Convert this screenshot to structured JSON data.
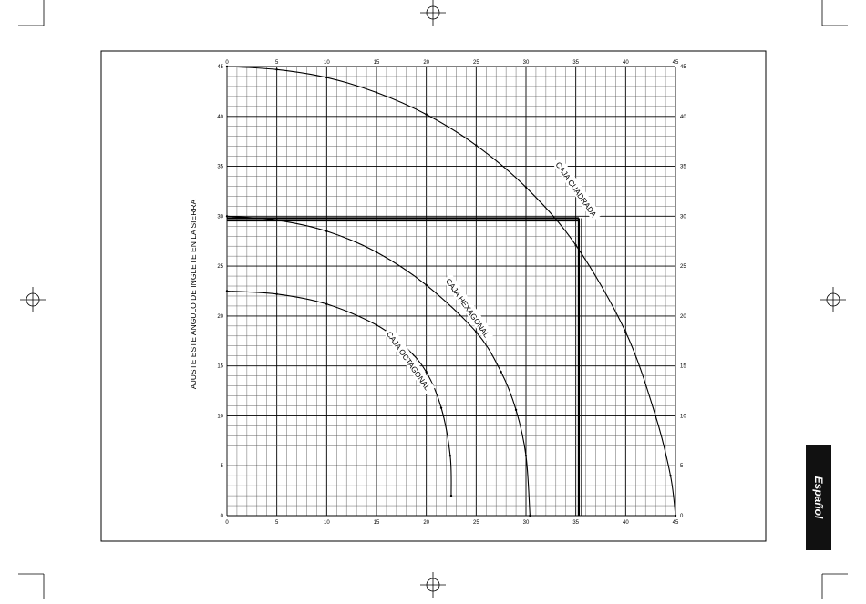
{
  "language_tab": "Español",
  "chart_data": {
    "type": "line",
    "title": "",
    "xlabel": "",
    "ylabel": "AJUSTE ESTE ANGULO DE INGLETE EN LA SIERRA",
    "xlim": [
      0,
      45
    ],
    "ylim": [
      0,
      45
    ],
    "x_ticks": [
      "0",
      "5",
      "10",
      "15",
      "20",
      "25",
      "30",
      "35",
      "40",
      "45"
    ],
    "y_ticks": [
      "0",
      "5",
      "10",
      "15",
      "20",
      "25",
      "30",
      "35",
      "40",
      "45"
    ],
    "grid": true,
    "minor_grid_step": 1,
    "series": [
      {
        "name": "CAJA CUADRADA",
        "points": [
          [
            0,
            45
          ],
          [
            5,
            44.7
          ],
          [
            10,
            43.9
          ],
          [
            15,
            42.4
          ],
          [
            20,
            40.2
          ],
          [
            25,
            37.1
          ],
          [
            30,
            32.9
          ],
          [
            35,
            27.1
          ],
          [
            40,
            18.4
          ],
          [
            43,
            10
          ],
          [
            44.5,
            4
          ],
          [
            45,
            0
          ]
        ]
      },
      {
        "name": "CAJA HEXAGONAL",
        "points": [
          [
            0,
            30
          ],
          [
            5,
            29.6
          ],
          [
            10,
            28.5
          ],
          [
            15,
            26.4
          ],
          [
            20,
            23.1
          ],
          [
            25,
            18.4
          ],
          [
            27.5,
            14.4
          ],
          [
            29,
            10.6
          ],
          [
            30,
            6
          ],
          [
            30.4,
            0
          ]
        ]
      },
      {
        "name": "CAJA OCTAGONAL",
        "points": [
          [
            0,
            22.5
          ],
          [
            5,
            22.2
          ],
          [
            10,
            21.2
          ],
          [
            15,
            19.1
          ],
          [
            18,
            16.8
          ],
          [
            20,
            14.4
          ],
          [
            21.5,
            10.8
          ],
          [
            22.4,
            6
          ],
          [
            22.5,
            2
          ]
        ]
      }
    ],
    "reference_lines": {
      "y": 29.8,
      "x": 35.3
    }
  },
  "colors": {
    "grid": "#555555",
    "line": "#000000",
    "tab_bg": "#111111"
  }
}
